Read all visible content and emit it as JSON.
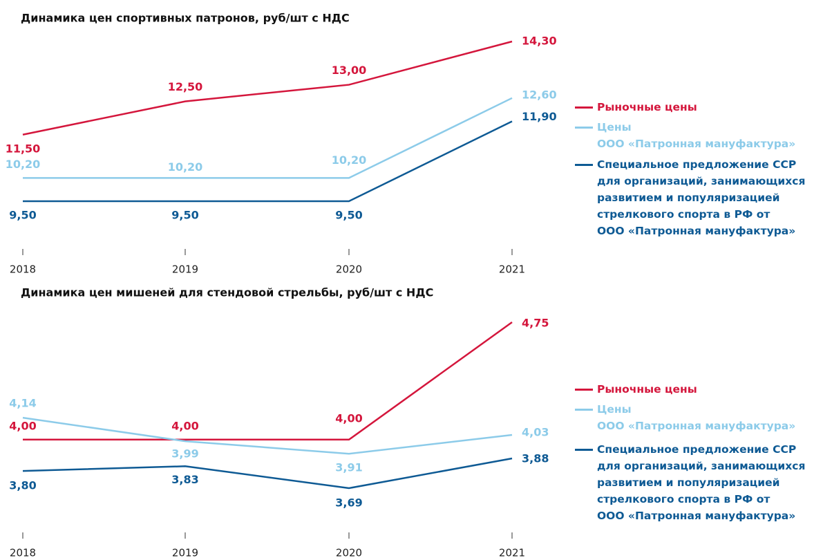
{
  "chart_data": [
    {
      "type": "line",
      "title": "Динамика цен спортивных патронов, руб/шт с НДС",
      "categories": [
        "2018",
        "2019",
        "2020",
        "2021"
      ],
      "series": [
        {
          "name": "Рыночные цены",
          "color": "#d4163c",
          "values": [
            11.5,
            12.5,
            13.0,
            14.3
          ],
          "value_labels": [
            "11,50",
            "12,50",
            "13,00",
            "14,30"
          ]
        },
        {
          "name": "Цены\nООО «Патронная мануфактура»",
          "color": "#8ccbe9",
          "values": [
            10.2,
            10.2,
            10.2,
            12.6
          ],
          "value_labels": [
            "10,20",
            "10,20",
            "10,20",
            "12,60"
          ]
        },
        {
          "name": "Специальное предложение ССР\nдля организаций, занимающихся\nразвитием и популяризацией\nстрелкового спорта в РФ от\nООО «Патронная мануфактура»",
          "color": "#0e5a94",
          "values": [
            9.5,
            9.5,
            9.5,
            11.9
          ],
          "value_labels": [
            "9,50",
            "9,50",
            "9,50",
            "11,90"
          ]
        }
      ]
    },
    {
      "type": "line",
      "title": "Динамика цен мишеней для стендовой стрельбы, руб/шт с НДС",
      "categories": [
        "2018",
        "2019",
        "2020",
        "2021"
      ],
      "series": [
        {
          "name": "Рыночные цены",
          "color": "#d4163c",
          "values": [
            4.0,
            4.0,
            4.0,
            4.75
          ],
          "value_labels": [
            "4,00",
            "4,00",
            "4,00",
            "4,75"
          ]
        },
        {
          "name": "Цены\nООО «Патронная мануфактура»",
          "color": "#8ccbe9",
          "values": [
            4.14,
            3.99,
            3.91,
            4.03
          ],
          "value_labels": [
            "4,14",
            "3,99",
            "3,91",
            "4,03"
          ]
        },
        {
          "name": "Специальное предложение ССР\nдля организаций, занимающихся\nразвитием и популяризацией\nстрелкового спорта в РФ от\nООО «Патронная мануфактура»",
          "color": "#0e5a94",
          "values": [
            3.8,
            3.83,
            3.69,
            3.88
          ],
          "value_labels": [
            "3,80",
            "3,83",
            "3,69",
            "3,88"
          ]
        }
      ]
    }
  ]
}
